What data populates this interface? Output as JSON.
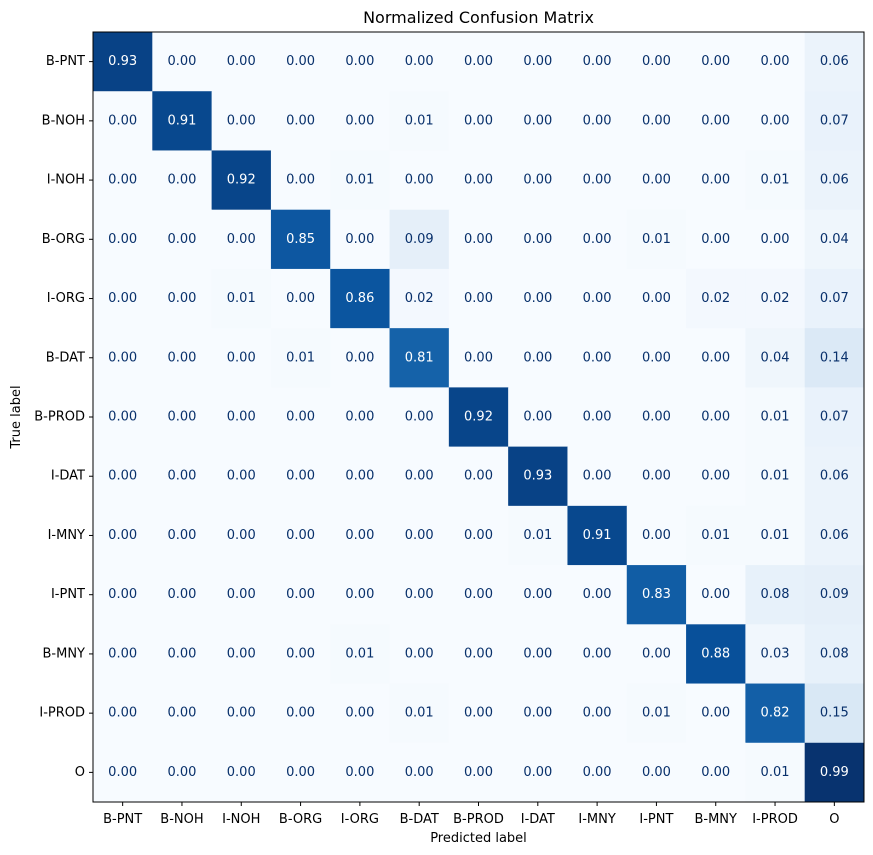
{
  "chart_data": {
    "type": "heatmap",
    "title": "Normalized Confusion Matrix",
    "xlabel": "Predicted label",
    "ylabel": "True label",
    "x_categories": [
      "B-PNT",
      "B-NOH",
      "I-NOH",
      "B-ORG",
      "I-ORG",
      "B-DAT",
      "B-PROD",
      "I-DAT",
      "I-MNY",
      "I-PNT",
      "B-MNY",
      "I-PROD",
      "O"
    ],
    "y_categories": [
      "B-PNT",
      "B-NOH",
      "I-NOH",
      "B-ORG",
      "I-ORG",
      "B-DAT",
      "B-PROD",
      "I-DAT",
      "I-MNY",
      "I-PNT",
      "B-MNY",
      "I-PROD",
      "O"
    ],
    "values": [
      [
        0.93,
        0.0,
        0.0,
        0.0,
        0.0,
        0.0,
        0.0,
        0.0,
        0.0,
        0.0,
        0.0,
        0.0,
        0.06
      ],
      [
        0.0,
        0.91,
        0.0,
        0.0,
        0.0,
        0.01,
        0.0,
        0.0,
        0.0,
        0.0,
        0.0,
        0.0,
        0.07
      ],
      [
        0.0,
        0.0,
        0.92,
        0.0,
        0.01,
        0.0,
        0.0,
        0.0,
        0.0,
        0.0,
        0.0,
        0.01,
        0.06
      ],
      [
        0.0,
        0.0,
        0.0,
        0.85,
        0.0,
        0.09,
        0.0,
        0.0,
        0.0,
        0.01,
        0.0,
        0.0,
        0.04
      ],
      [
        0.0,
        0.0,
        0.01,
        0.0,
        0.86,
        0.02,
        0.0,
        0.0,
        0.0,
        0.0,
        0.02,
        0.02,
        0.07
      ],
      [
        0.0,
        0.0,
        0.0,
        0.01,
        0.0,
        0.81,
        0.0,
        0.0,
        0.0,
        0.0,
        0.0,
        0.04,
        0.14
      ],
      [
        0.0,
        0.0,
        0.0,
        0.0,
        0.0,
        0.0,
        0.92,
        0.0,
        0.0,
        0.0,
        0.0,
        0.01,
        0.07
      ],
      [
        0.0,
        0.0,
        0.0,
        0.0,
        0.0,
        0.0,
        0.0,
        0.93,
        0.0,
        0.0,
        0.0,
        0.01,
        0.06
      ],
      [
        0.0,
        0.0,
        0.0,
        0.0,
        0.0,
        0.0,
        0.0,
        0.01,
        0.91,
        0.0,
        0.01,
        0.01,
        0.06
      ],
      [
        0.0,
        0.0,
        0.0,
        0.0,
        0.0,
        0.0,
        0.0,
        0.0,
        0.0,
        0.83,
        0.0,
        0.08,
        0.09
      ],
      [
        0.0,
        0.0,
        0.0,
        0.0,
        0.01,
        0.0,
        0.0,
        0.0,
        0.0,
        0.0,
        0.88,
        0.03,
        0.08
      ],
      [
        0.0,
        0.0,
        0.0,
        0.0,
        0.0,
        0.01,
        0.0,
        0.0,
        0.0,
        0.01,
        0.0,
        0.82,
        0.15
      ],
      [
        0.0,
        0.0,
        0.0,
        0.0,
        0.0,
        0.0,
        0.0,
        0.0,
        0.0,
        0.0,
        0.0,
        0.01,
        0.99
      ]
    ],
    "value_range": [
      0,
      1
    ],
    "colormap": "Blues",
    "colors": {
      "low": "#f7fbff",
      "high": "#08306b",
      "text_dark": "#08306b",
      "text_light": "#ffffff"
    },
    "grid": false,
    "colorbar": false
  }
}
